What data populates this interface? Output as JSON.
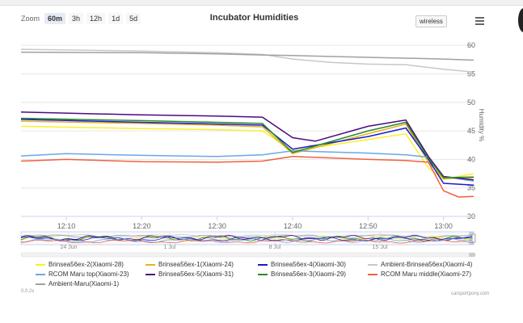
{
  "zoom": {
    "label": "Zoom",
    "buttons": [
      "60m",
      "3h",
      "12h",
      "1d",
      "5d"
    ],
    "active": "60m"
  },
  "wireless_label": "wireless",
  "version": "0.0.2x",
  "credit": "carsportpony.com",
  "chart_data": {
    "type": "line",
    "title": "Incubator Humidities",
    "ylabel": "Humidity %",
    "ylim": [
      30,
      62
    ],
    "yticks": [
      30,
      35,
      40,
      45,
      50,
      55,
      60
    ],
    "xlim": [
      "12:04",
      "13:04"
    ],
    "xticks": [
      "12:10",
      "12:20",
      "12:30",
      "12:40",
      "12:50",
      "13:00"
    ],
    "grid": true,
    "legend_position": "bottom",
    "series": [
      {
        "name": "Brinsea56ex-2(Xiaomi-28)",
        "color": "#f7f12b",
        "x": [
          "12:04",
          "12:20",
          "12:30",
          "12:36",
          "12:40",
          "12:50",
          "12:55",
          "12:58",
          "13:00",
          "13:04"
        ],
        "y": [
          45.8,
          45.4,
          45.2,
          45.0,
          41.5,
          43.5,
          44.5,
          38.5,
          36.5,
          37.5
        ]
      },
      {
        "name": "Brinsea56ex-1(Xiaomi-24)",
        "color": "#e8b21c",
        "x": [
          "12:04",
          "12:20",
          "12:30",
          "12:36",
          "12:40",
          "12:50",
          "12:55",
          "12:58",
          "13:00",
          "13:04"
        ],
        "y": [
          46.7,
          46.3,
          46.0,
          45.7,
          41.0,
          44.5,
          46.2,
          39.5,
          36.6,
          36.8
        ]
      },
      {
        "name": "Brinsea56ex-4(Xiaomi-30)",
        "color": "#1a1ad0",
        "x": [
          "12:04",
          "12:20",
          "12:30",
          "12:36",
          "12:40",
          "12:50",
          "12:55",
          "12:58",
          "13:00",
          "13:04"
        ],
        "y": [
          47.0,
          46.5,
          46.2,
          46.0,
          41.8,
          44.0,
          45.5,
          40.0,
          35.8,
          35.5
        ]
      },
      {
        "name": "Ambient-Brinsea56ex(Xiaomi-4)",
        "color": "#c8c8c8",
        "x": [
          "12:04",
          "12:20",
          "12:30",
          "12:36",
          "12:40",
          "12:45",
          "12:50",
          "12:55",
          "13:00",
          "13:04"
        ],
        "y": [
          59.3,
          59.0,
          58.7,
          58.4,
          57.6,
          57.0,
          56.7,
          56.6,
          55.8,
          55.3
        ]
      },
      {
        "name": "RCOM Maru top(Xiaomi-23)",
        "color": "#6aa7e8",
        "x": [
          "12:04",
          "12:10",
          "12:20",
          "12:30",
          "12:36",
          "12:40",
          "12:50",
          "12:55",
          "12:58",
          "13:00",
          "13:04"
        ],
        "y": [
          40.6,
          41.0,
          40.7,
          40.5,
          40.8,
          41.5,
          41.1,
          40.8,
          40.4,
          37.0,
          36.2
        ]
      },
      {
        "name": "Brinsea56ex-5(Xiaomi-31)",
        "color": "#4a0a80",
        "x": [
          "12:04",
          "12:20",
          "12:30",
          "12:36",
          "12:40",
          "12:43",
          "12:50",
          "12:55",
          "12:58",
          "13:00",
          "13:04"
        ],
        "y": [
          48.3,
          47.8,
          47.6,
          47.4,
          43.8,
          43.2,
          45.8,
          46.9,
          40.5,
          37.0,
          36.4
        ]
      },
      {
        "name": "Brinsea56ex-3(Xiaomi-29)",
        "color": "#2a8a2a",
        "x": [
          "12:04",
          "12:20",
          "12:30",
          "12:36",
          "12:40",
          "12:50",
          "12:55",
          "12:58",
          "13:00",
          "13:04"
        ],
        "y": [
          47.2,
          46.8,
          46.5,
          46.3,
          41.2,
          45.0,
          46.5,
          40.2,
          36.8,
          36.9
        ]
      },
      {
        "name": "RCOM Maru middle(Xiaomi-27)",
        "color": "#f06040",
        "x": [
          "12:04",
          "12:10",
          "12:20",
          "12:30",
          "12:36",
          "12:40",
          "12:50",
          "12:55",
          "12:58",
          "13:00",
          "13:02",
          "13:04"
        ],
        "y": [
          39.7,
          40.0,
          39.6,
          39.5,
          39.7,
          40.5,
          40.0,
          39.8,
          39.5,
          34.5,
          33.4,
          33.5
        ]
      },
      {
        "name": "Ambient-Maru(Xiaomi-1)",
        "color": "#a0a0a0",
        "x": [
          "12:04",
          "12:20",
          "12:30",
          "12:36",
          "12:40",
          "12:50",
          "13:00",
          "13:04"
        ],
        "y": [
          58.8,
          58.7,
          58.5,
          58.3,
          58.2,
          57.9,
          57.6,
          57.4
        ]
      }
    ],
    "navigator": {
      "ticks": [
        "24 Jun",
        "1 Jul",
        "8 Jul",
        "15 Jul"
      ]
    }
  }
}
